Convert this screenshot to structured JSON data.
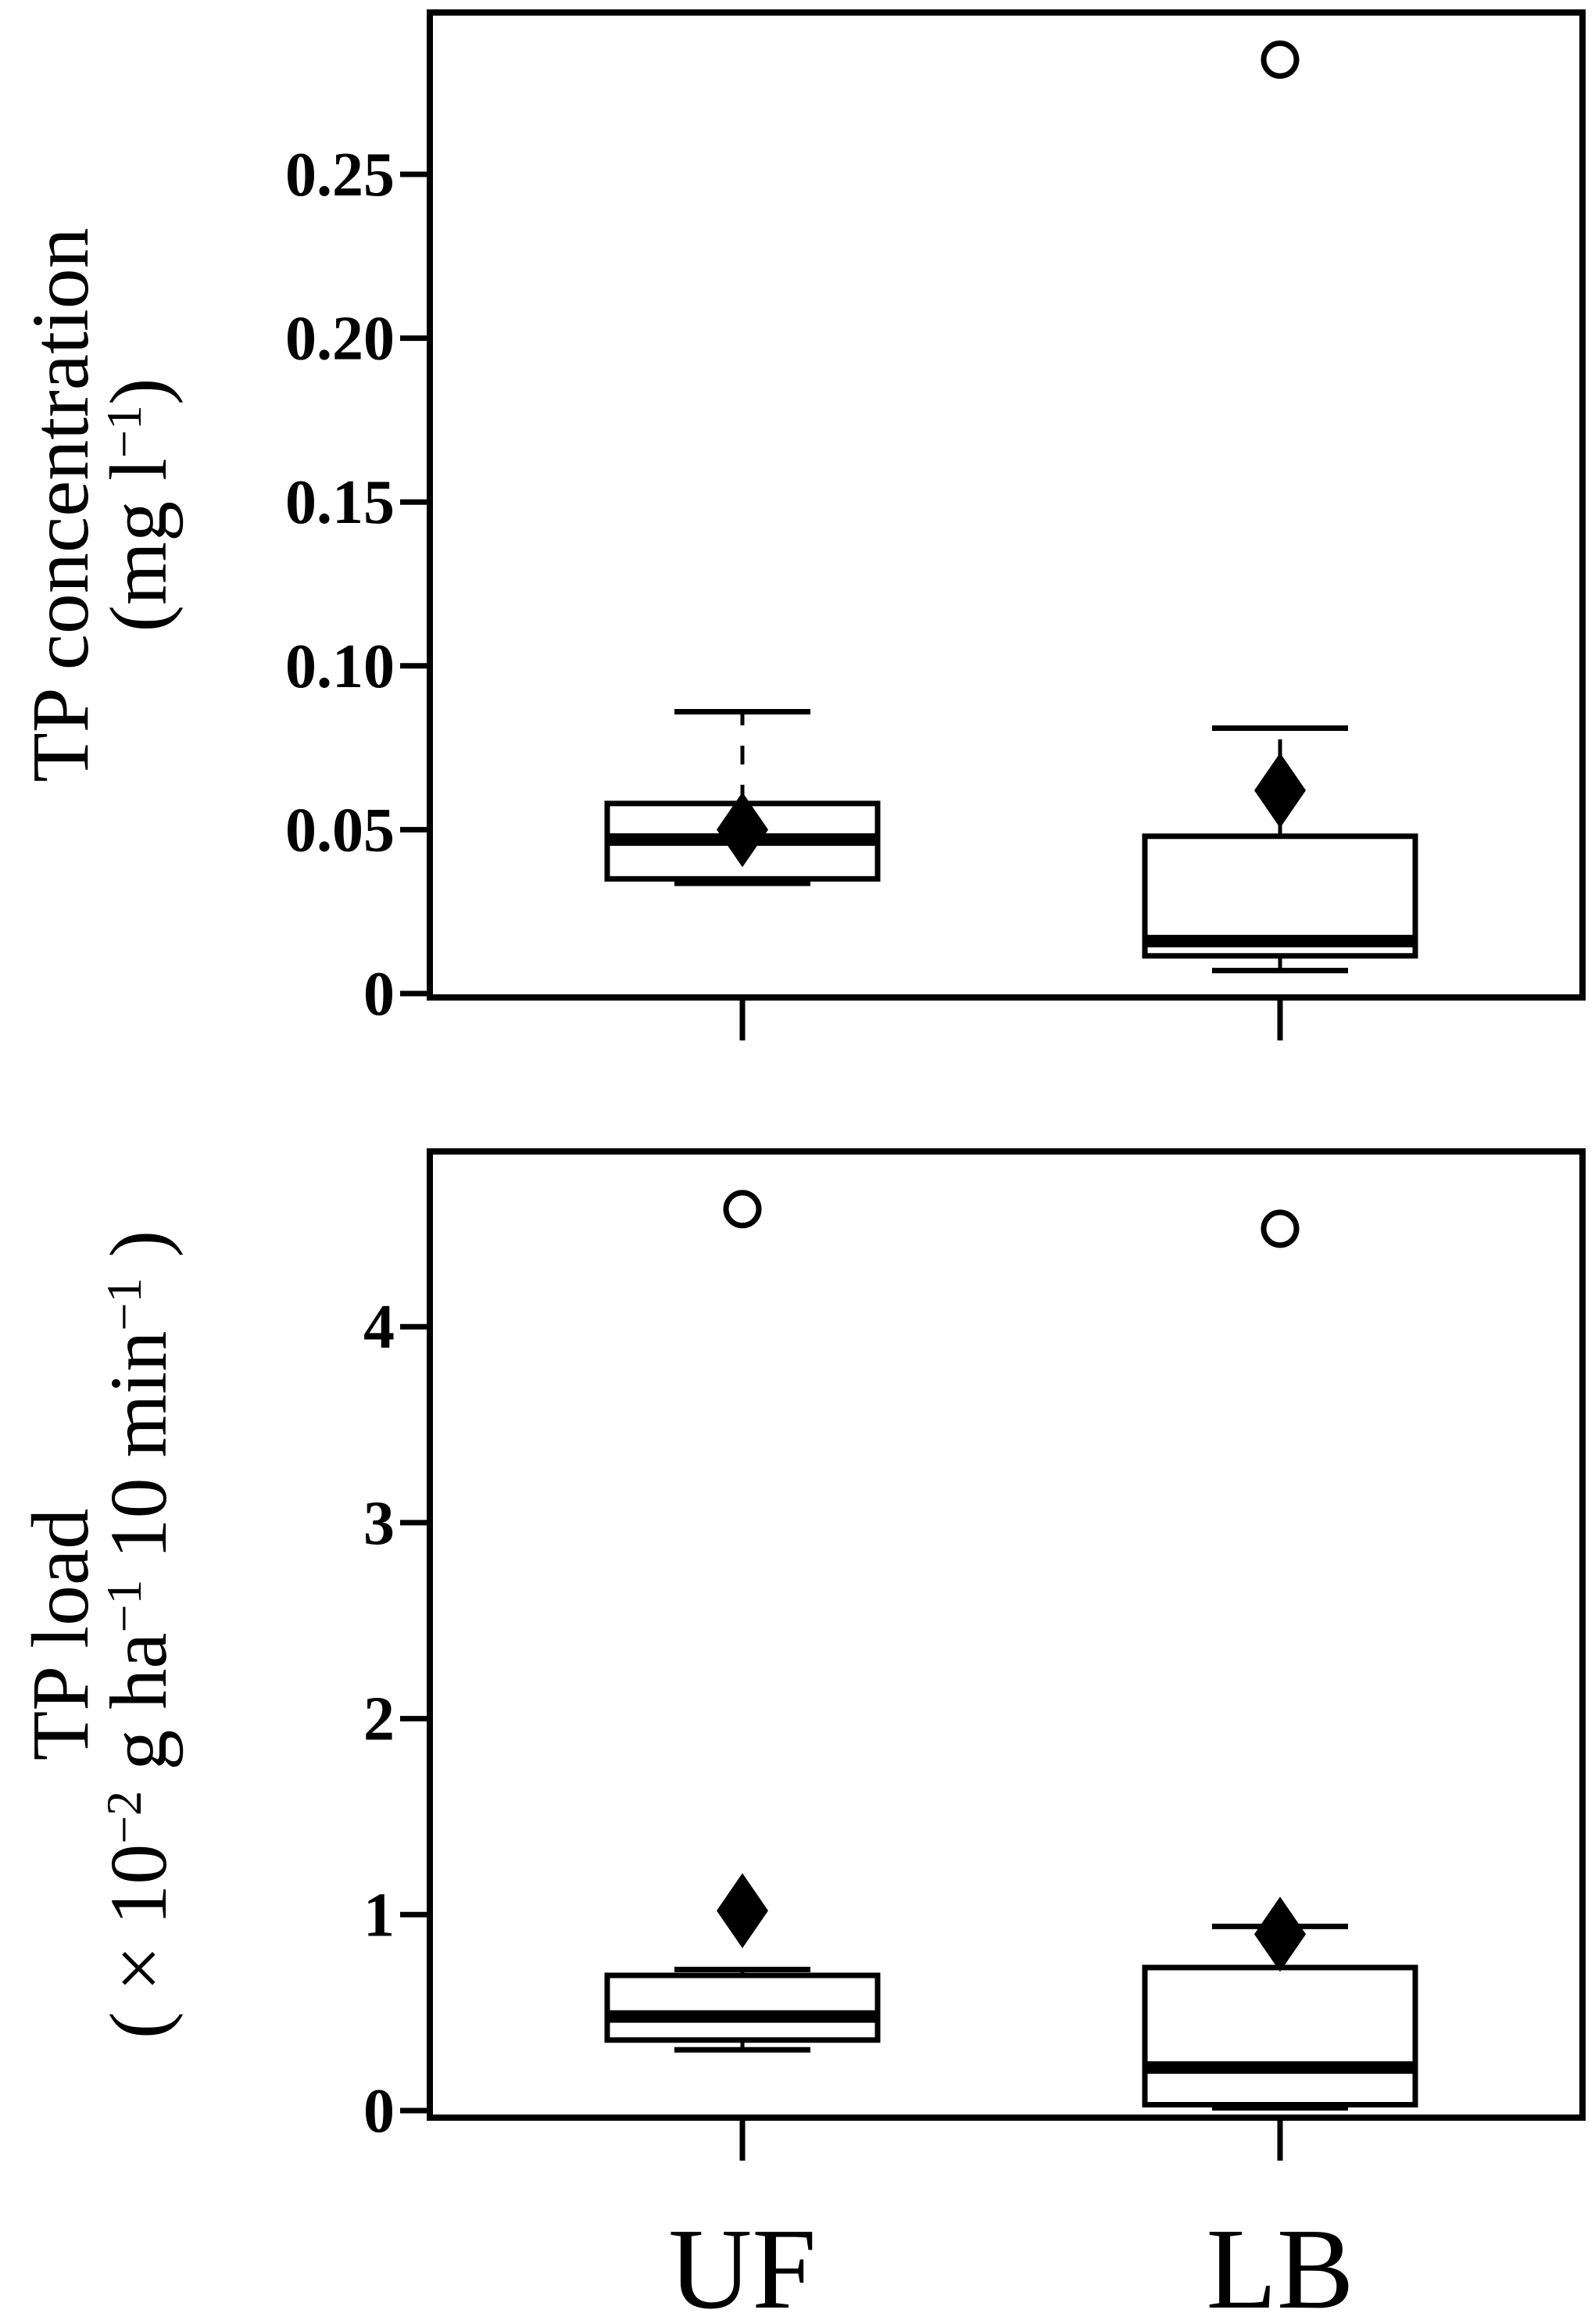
{
  "figure": {
    "background_color": "#ffffff",
    "ink_color": "#000000",
    "categories": [
      "UF",
      "LB"
    ],
    "panels": [
      {
        "id": "tp-concentration",
        "ylabel_line1": "TP concentration",
        "ylabel_line2_parts": [
          {
            "t": "(mg l"
          },
          {
            "t": "−1",
            "sup": true
          },
          {
            "t": ")"
          }
        ],
        "ytick_labels": [
          "0.25",
          "0.20",
          "0.15",
          "0.10",
          "0.05",
          "0"
        ]
      },
      {
        "id": "tp-load",
        "ylabel_line1": "TP load",
        "ylabel_line2_parts": [
          {
            "t": "( × 10"
          },
          {
            "t": "−2",
            "sup": true
          },
          {
            "t": " g ha"
          },
          {
            "t": "−1",
            "sup": true
          },
          {
            "t": " 10 min"
          },
          {
            "t": "−1",
            "sup": true
          },
          {
            "t": " )"
          }
        ],
        "ytick_labels": [
          "4",
          "3",
          "2",
          "1",
          "0"
        ]
      }
    ],
    "x_category_labels": [
      "UF",
      "LB"
    ]
  },
  "chart_data": [
    {
      "type": "box",
      "title": "",
      "xlabel": "",
      "ylabel": "TP concentration (mg l⁻¹)",
      "categories": [
        "UF",
        "LB"
      ],
      "ylim": [
        0,
        0.3
      ],
      "yticks": [
        0.25,
        0.2,
        0.15,
        0.1,
        0.05,
        0
      ],
      "grid": false,
      "legend": "none",
      "series": [
        {
          "name": "UF",
          "whisker_low": 0.034,
          "q1": 0.035,
          "median": 0.047,
          "q3": 0.058,
          "whisker_high": 0.086,
          "mean": 0.05,
          "outliers": []
        },
        {
          "name": "LB",
          "whisker_low": 0.007,
          "q1": 0.0115,
          "median": 0.016,
          "q3": 0.048,
          "whisker_high": 0.081,
          "mean": 0.062,
          "outliers": [
            0.285
          ]
        }
      ]
    },
    {
      "type": "box",
      "title": "",
      "xlabel": "",
      "ylabel": "TP load (×10⁻² g ha⁻¹ 10 min⁻¹)",
      "categories": [
        "UF",
        "LB"
      ],
      "ylim": [
        0,
        4.9
      ],
      "yticks": [
        4,
        3,
        2,
        1,
        0
      ],
      "grid": false,
      "legend": "none",
      "series": [
        {
          "name": "UF",
          "whisker_low": 0.31,
          "q1": 0.36,
          "median": 0.48,
          "q3": 0.69,
          "whisker_high": 0.72,
          "mean": 1.02,
          "outliers": [
            4.6
          ]
        },
        {
          "name": "LB",
          "whisker_low": 0.02,
          "q1": 0.03,
          "median": 0.22,
          "q3": 0.73,
          "whisker_high": 0.94,
          "mean": 0.9,
          "outliers": [
            4.5
          ]
        }
      ]
    }
  ]
}
